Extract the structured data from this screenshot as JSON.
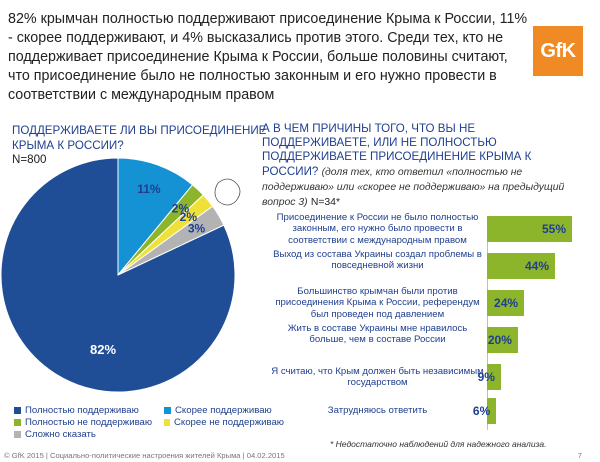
{
  "headline": "82% крымчан полностью поддерживают присоединение Крыма к России, 11% - скорее поддерживают, и  4% высказались против этого. Среди тех, кто не поддерживает присоединение Крыма к России, больше половины считают, что присоединение было не полностью законным и его нужно провести в соответствии с международным правом",
  "logo": "GfK",
  "left_question": {
    "text": "ПОДДЕРЖИВАЕТЕ ЛИ ВЫ ПРИСОЕДИНЕНИЕ КРЫМА К РОССИИ?",
    "n": "N=800"
  },
  "right_question": {
    "text": "А В ЧЕМ ПРИЧИНЫ ТОГО, ЧТО ВЫ НЕ ПОДДЕРЖИВАЕТЕ, ИЛИ НЕ ПОЛНОСТЬЮ ПОДДЕРЖИВАЕТЕ ПРИСОЕДИНЕНИЕ КРЫМА К РОССИИ?",
    "sub": "(доля тех, кто ответил «полностью не поддерживаю» или «скорее не поддерживаю» на предыдущий вопрос 3)",
    "n": "N=34*"
  },
  "chart_data": [
    {
      "type": "pie",
      "title": "ПОДДЕРЖИВАЕТЕ ЛИ ВЫ ПРИСОЕДИНЕНИЕ КРЫМА К РОССИИ?",
      "slices": [
        {
          "name": "Полностью поддерживаю",
          "value": 82,
          "label": "82%",
          "color": "#1f4e96"
        },
        {
          "name": "Скорее поддерживаю",
          "value": 11,
          "label": "11%",
          "color": "#1592d4"
        },
        {
          "name": "Полностью не поддерживаю",
          "value": 2,
          "label": "2%",
          "color": "#8db52b"
        },
        {
          "name": "Скорее не поддерживаю",
          "value": 2,
          "label": "2%",
          "color": "#f0e13a"
        },
        {
          "name": "Сложно сказать",
          "value": 3,
          "label": "3%",
          "color": "#b3b3b3"
        }
      ],
      "legend_placement": "bottom"
    },
    {
      "type": "bar",
      "orientation": "horizontal",
      "categories": [
        "Присоединение к России не было полностью законным, его нужно было провести в соответствии с международным правом",
        "Выход из состава Украины создал проблемы в повседневной жизни",
        "Большинство крымчан были против присоединения Крыма к России, референдум был проведен под давлением",
        "Жить в составе Украины мне нравилось больше, чем в составе России",
        "Я считаю, что Крым должен быть независимым государством",
        "Затрудняюсь ответить"
      ],
      "values": [
        55,
        44,
        24,
        20,
        9,
        6
      ],
      "labels": [
        "55%",
        "44%",
        "24%",
        "20%",
        "9%",
        "6%"
      ],
      "color": "#8db52b",
      "xlim": [
        0,
        60
      ]
    }
  ],
  "footnote": "* Недостаточно наблюдений для надежного анализа.",
  "footer": {
    "text": "© GfK 2015 | Социально-политические настроения жителей Крыма | 04.02.2015",
    "page": "7"
  }
}
